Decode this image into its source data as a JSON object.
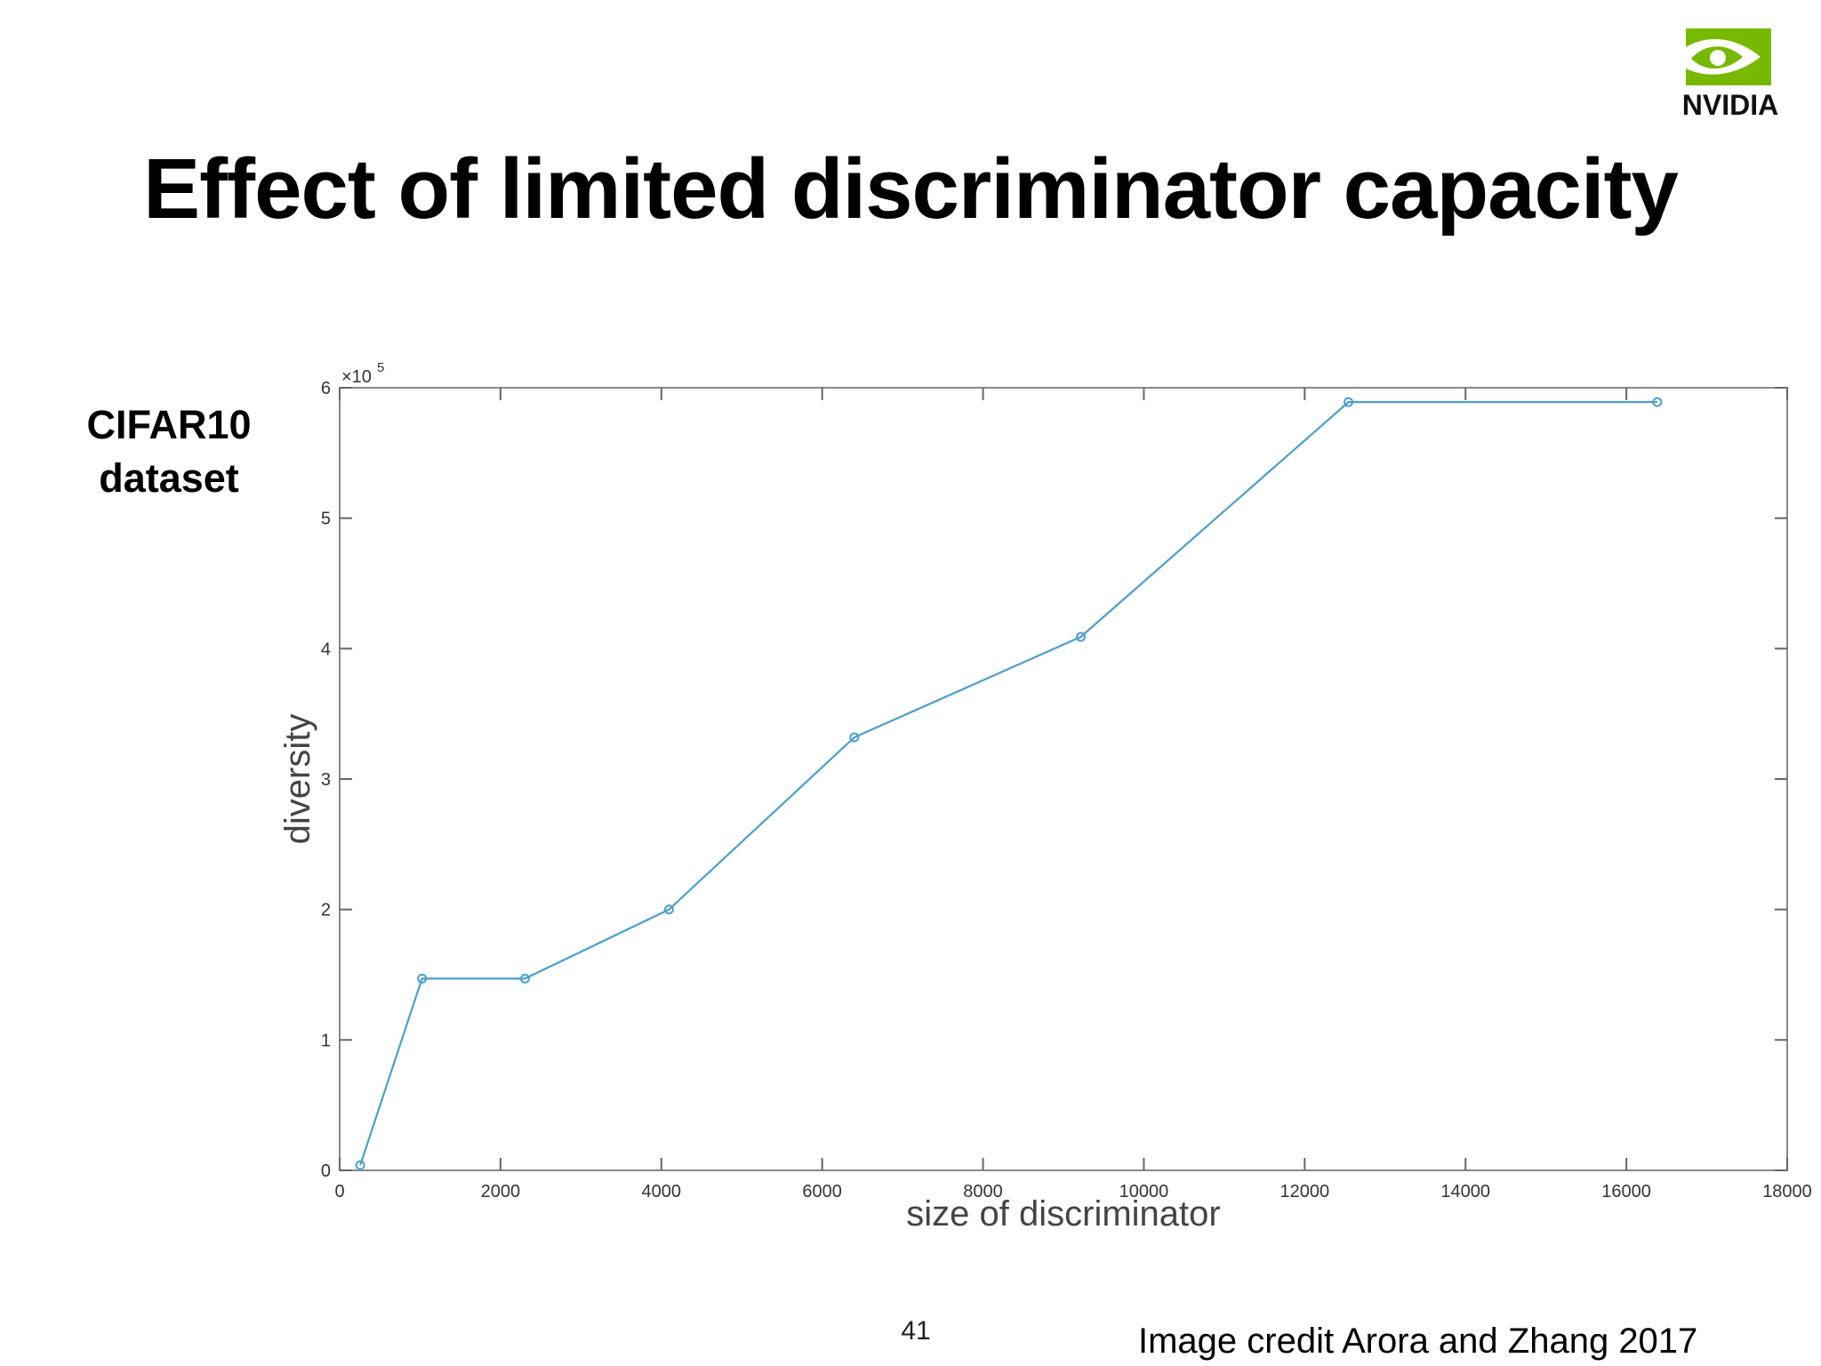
{
  "slide": {
    "title": "Effect of limited discriminator capacity",
    "dataset_label_line1": "CIFAR10",
    "dataset_label_line2": "dataset",
    "logo_text": "NVIDIA",
    "page_number": "41",
    "credit": "Image credit Arora and Zhang 2017",
    "logo_color": "#76b900"
  },
  "chart_data": {
    "type": "line",
    "title": "",
    "xlabel": "size of discriminator",
    "ylabel": "diversity",
    "y_multiplier": "×10^5",
    "y_multiplier_base": "×10",
    "y_multiplier_exp": "5",
    "xlim": [
      0,
      18000
    ],
    "ylim": [
      0,
      6
    ],
    "x_ticks": [
      "0",
      "2000",
      "4000",
      "6000",
      "8000",
      "10000",
      "12000",
      "14000",
      "16000",
      "18000"
    ],
    "y_ticks": [
      "0",
      "1",
      "2",
      "3",
      "4",
      "5",
      "6"
    ],
    "grid": false,
    "line_color": "#4a9fd0",
    "series": [
      {
        "x": [
          256,
          1024,
          2304,
          4096,
          6400,
          9216,
          12544,
          16384
        ],
        "y": [
          0.04,
          1.47,
          1.47,
          2.0,
          3.32,
          4.09,
          5.89,
          5.89
        ]
      }
    ]
  }
}
